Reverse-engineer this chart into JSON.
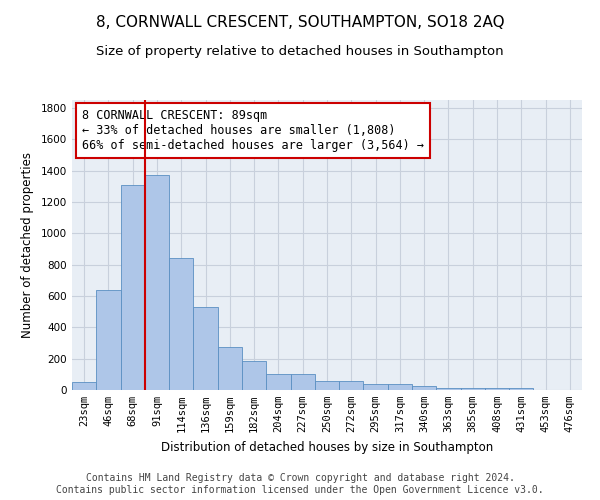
{
  "title": "8, CORNWALL CRESCENT, SOUTHAMPTON, SO18 2AQ",
  "subtitle": "Size of property relative to detached houses in Southampton",
  "xlabel": "Distribution of detached houses by size in Southampton",
  "ylabel": "Number of detached properties",
  "categories": [
    "23sqm",
    "46sqm",
    "68sqm",
    "91sqm",
    "114sqm",
    "136sqm",
    "159sqm",
    "182sqm",
    "204sqm",
    "227sqm",
    "250sqm",
    "272sqm",
    "295sqm",
    "317sqm",
    "340sqm",
    "363sqm",
    "385sqm",
    "408sqm",
    "431sqm",
    "453sqm",
    "476sqm"
  ],
  "values": [
    50,
    635,
    1305,
    1370,
    845,
    530,
    275,
    185,
    105,
    105,
    60,
    60,
    38,
    38,
    28,
    15,
    15,
    15,
    12,
    0,
    0
  ],
  "bar_color": "#aec6e8",
  "bar_edge_color": "#5a8fc2",
  "vline_x_index": 2.5,
  "vline_color": "#cc0000",
  "annotation_text": "8 CORNWALL CRESCENT: 89sqm\n← 33% of detached houses are smaller (1,808)\n66% of semi-detached houses are larger (3,564) →",
  "annotation_box_facecolor": "#ffffff",
  "annotation_box_edgecolor": "#cc0000",
  "ylim": [
    0,
    1850
  ],
  "yticks": [
    0,
    200,
    400,
    600,
    800,
    1000,
    1200,
    1400,
    1600,
    1800
  ],
  "footer_line1": "Contains HM Land Registry data © Crown copyright and database right 2024.",
  "footer_line2": "Contains public sector information licensed under the Open Government Licence v3.0.",
  "plot_bg_color": "#e8eef5",
  "grid_color": "#c8d0dc",
  "title_fontsize": 11,
  "subtitle_fontsize": 9.5,
  "axis_label_fontsize": 8.5,
  "tick_fontsize": 7.5,
  "annotation_fontsize": 8.5,
  "footer_fontsize": 7
}
